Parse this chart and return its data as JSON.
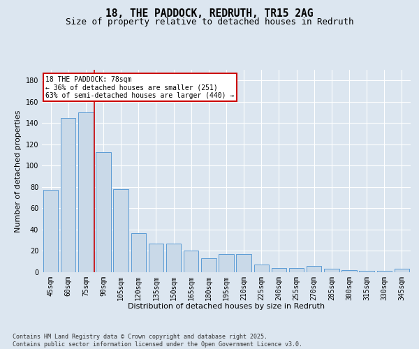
{
  "title": "18, THE PADDOCK, REDRUTH, TR15 2AG",
  "subtitle": "Size of property relative to detached houses in Redruth",
  "xlabel": "Distribution of detached houses by size in Redruth",
  "ylabel": "Number of detached properties",
  "categories": [
    "45sqm",
    "60sqm",
    "75sqm",
    "90sqm",
    "105sqm",
    "120sqm",
    "135sqm",
    "150sqm",
    "165sqm",
    "180sqm",
    "195sqm",
    "210sqm",
    "225sqm",
    "240sqm",
    "255sqm",
    "270sqm",
    "285sqm",
    "300sqm",
    "315sqm",
    "330sqm",
    "345sqm"
  ],
  "values": [
    77,
    145,
    150,
    113,
    78,
    37,
    27,
    27,
    20,
    13,
    17,
    17,
    7,
    4,
    4,
    6,
    3,
    2,
    1,
    1,
    3
  ],
  "bar_color": "#c9d9e8",
  "bar_edge_color": "#5b9bd5",
  "background_color": "#dce6f0",
  "grid_color": "#ffffff",
  "fig_background": "#dce6f0",
  "annotation_text": "18 THE PADDOCK: 78sqm\n← 36% of detached houses are smaller (251)\n63% of semi-detached houses are larger (440) →",
  "annotation_box_color": "#ffffff",
  "annotation_box_edge": "#cc0000",
  "red_line_x": "75sqm",
  "ylim": [
    0,
    190
  ],
  "yticks": [
    0,
    20,
    40,
    60,
    80,
    100,
    120,
    140,
    160,
    180
  ],
  "footer": "Contains HM Land Registry data © Crown copyright and database right 2025.\nContains public sector information licensed under the Open Government Licence v3.0.",
  "title_fontsize": 10.5,
  "subtitle_fontsize": 9,
  "axis_label_fontsize": 8,
  "tick_fontsize": 7,
  "footer_fontsize": 6
}
